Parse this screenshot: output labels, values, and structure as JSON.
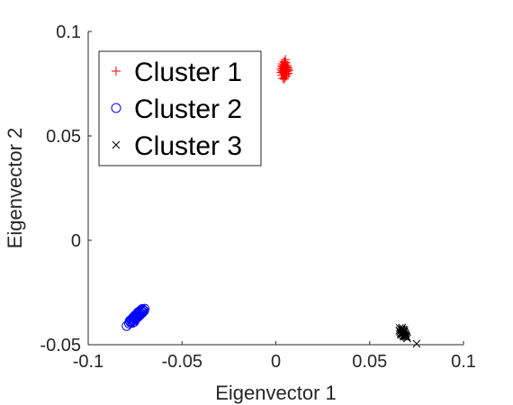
{
  "chart_data": {
    "type": "scatter",
    "title": "",
    "xlabel": "Eigenvector 1",
    "ylabel": "Eigenvector 2",
    "xlim": [
      -0.1,
      0.1
    ],
    "ylim": [
      -0.05,
      0.1
    ],
    "xticks": [
      -0.1,
      -0.05,
      0,
      0.05,
      0.1
    ],
    "xtick_labels": [
      "-0.1",
      "-0.05",
      "0",
      "0.05",
      "0.1"
    ],
    "yticks": [
      -0.05,
      0,
      0.05,
      0.1
    ],
    "ytick_labels": [
      "-0.05",
      "0",
      "0.05",
      "0.1"
    ],
    "grid": false,
    "legend_position": "top-left",
    "series": [
      {
        "name": "Cluster 1",
        "marker": "plus",
        "color": "#ff0000",
        "points": [
          [
            0.0045,
            0.0815
          ],
          [
            0.0038,
            0.0822
          ],
          [
            0.0052,
            0.0808
          ],
          [
            0.0041,
            0.0798
          ],
          [
            0.0058,
            0.083
          ],
          [
            0.0033,
            0.0812
          ],
          [
            0.0047,
            0.0841
          ],
          [
            0.0062,
            0.0818
          ],
          [
            0.0029,
            0.0804
          ],
          [
            0.005,
            0.0788
          ],
          [
            0.0043,
            0.0856
          ],
          [
            0.0066,
            0.08
          ],
          [
            0.0036,
            0.0835
          ],
          [
            0.0055,
            0.0795
          ],
          [
            0.004,
            0.0826
          ],
          [
            0.0049,
            0.078
          ],
          [
            0.0031,
            0.079
          ],
          [
            0.006,
            0.0837
          ],
          [
            0.0044,
            0.0802
          ],
          [
            0.0053,
            0.0849
          ],
          [
            0.0037,
            0.0776
          ],
          [
            0.0069,
            0.0814
          ],
          [
            0.0046,
            0.0829
          ],
          [
            0.0027,
            0.082
          ],
          [
            0.0051,
            0.0866
          ],
          [
            0.0042,
            0.081
          ],
          [
            0.0057,
            0.0787
          ],
          [
            0.0034,
            0.0845
          ],
          [
            0.0048,
            0.0796
          ],
          [
            0.0064,
            0.0825
          ],
          [
            0.0039,
            0.0806
          ],
          [
            0.0054,
            0.0819
          ],
          [
            0.0045,
            0.0772
          ],
          [
            0.0032,
            0.0833
          ],
          [
            0.0059,
            0.081
          ],
          [
            0.0047,
            0.0852
          ]
        ]
      },
      {
        "name": "Cluster 2",
        "marker": "circle",
        "color": "#0000ff",
        "points": [
          [
            -0.0795,
            -0.041
          ],
          [
            -0.0782,
            -0.0398
          ],
          [
            -0.0775,
            -0.0392
          ],
          [
            -0.0768,
            -0.0388
          ],
          [
            -0.076,
            -0.038
          ],
          [
            -0.0752,
            -0.0374
          ],
          [
            -0.0745,
            -0.0366
          ],
          [
            -0.0738,
            -0.0362
          ],
          [
            -0.073,
            -0.0354
          ],
          [
            -0.0722,
            -0.0348
          ],
          [
            -0.0715,
            -0.034
          ],
          [
            -0.0708,
            -0.0335
          ],
          [
            -0.077,
            -0.038
          ],
          [
            -0.0755,
            -0.039
          ],
          [
            -0.0748,
            -0.0378
          ],
          [
            -0.074,
            -0.037
          ],
          [
            -0.0733,
            -0.0365
          ],
          [
            -0.0725,
            -0.0358
          ],
          [
            -0.0718,
            -0.0352
          ],
          [
            -0.071,
            -0.0345
          ],
          [
            -0.0703,
            -0.0338
          ],
          [
            -0.0762,
            -0.0372
          ],
          [
            -0.075,
            -0.036
          ],
          [
            -0.0742,
            -0.0356
          ],
          [
            -0.0735,
            -0.0346
          ],
          [
            -0.0728,
            -0.0342
          ],
          [
            -0.072,
            -0.0336
          ],
          [
            -0.0712,
            -0.033
          ],
          [
            -0.0778,
            -0.0386
          ],
          [
            -0.0765,
            -0.0395
          ],
          [
            -0.0758,
            -0.0368
          ],
          [
            -0.07,
            -0.0328
          ]
        ]
      },
      {
        "name": "Cluster 3",
        "marker": "x",
        "color": "#000000",
        "points": [
          [
            0.066,
            -0.042
          ],
          [
            0.0668,
            -0.043
          ],
          [
            0.0672,
            -0.044
          ],
          [
            0.068,
            -0.0435
          ],
          [
            0.0665,
            -0.0445
          ],
          [
            0.0675,
            -0.045
          ],
          [
            0.0685,
            -0.0455
          ],
          [
            0.069,
            -0.0445
          ],
          [
            0.067,
            -0.0425
          ],
          [
            0.0678,
            -0.0448
          ],
          [
            0.0688,
            -0.046
          ],
          [
            0.0695,
            -0.0465
          ],
          [
            0.0662,
            -0.0438
          ],
          [
            0.0676,
            -0.0428
          ],
          [
            0.0683,
            -0.0442
          ],
          [
            0.0692,
            -0.0452
          ],
          [
            0.07,
            -0.047
          ],
          [
            0.0667,
            -0.0452
          ],
          [
            0.0681,
            -0.0462
          ],
          [
            0.0673,
            -0.0418
          ],
          [
            0.0686,
            -0.0436
          ],
          [
            0.0694,
            -0.0458
          ],
          [
            0.0658,
            -0.0432
          ],
          [
            0.0679,
            -0.0457
          ],
          [
            0.0698,
            -0.0462
          ],
          [
            0.0671,
            -0.0447
          ],
          [
            0.0684,
            -0.0428
          ],
          [
            0.075,
            -0.0495
          ]
        ]
      }
    ]
  }
}
